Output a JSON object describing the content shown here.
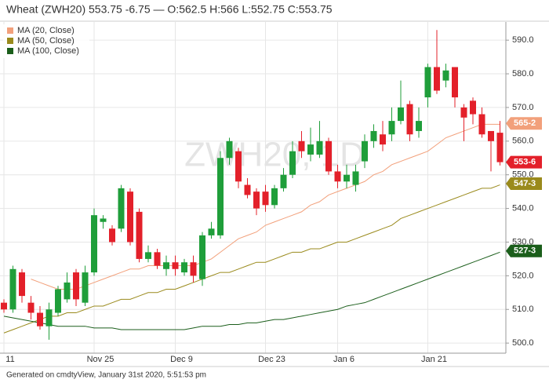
{
  "chart_data": {
    "type": "candlestick",
    "title": "Wheat (ZWH20) 553.75 -6.75 — O:562.5 H:566 L:552.75 C:553.75",
    "watermark": "ZWH20, 1D",
    "footer": "Generated on cmdtyView, January 31st 2020, 5:51:53 pm",
    "categories": [
      "11",
      null,
      null,
      null,
      null,
      null,
      null,
      null,
      null,
      null,
      "Nov 25",
      null,
      null,
      null,
      null,
      null,
      null,
      null,
      null,
      "Dec 9",
      null,
      null,
      null,
      null,
      null,
      null,
      null,
      null,
      null,
      "Dec 23",
      null,
      null,
      null,
      null,
      null,
      null,
      null,
      "Jan 6",
      null,
      null,
      null,
      null,
      null,
      null,
      null,
      null,
      null,
      "Jan 21",
      null,
      null,
      null,
      null,
      null,
      null,
      null,
      null
    ],
    "open": [
      512,
      510,
      521,
      512,
      509,
      505,
      509,
      513,
      521,
      512,
      521,
      536,
      534,
      534,
      545,
      539,
      525,
      527,
      522,
      524,
      521,
      524,
      519,
      532,
      532,
      555,
      557,
      547,
      545,
      545,
      541,
      546,
      550,
      560,
      556,
      556,
      560,
      551,
      548,
      547,
      554,
      560,
      562,
      562,
      566,
      571,
      563,
      573,
      582,
      578,
      582,
      570,
      572,
      568,
      563,
      562.5
    ],
    "high": [
      513,
      523,
      522,
      514,
      511,
      512,
      517,
      521,
      522,
      523,
      540,
      538,
      535,
      547,
      546,
      540,
      529,
      528,
      526,
      526,
      525,
      526,
      533,
      536,
      557,
      561,
      558,
      549,
      546,
      547,
      547,
      552,
      560,
      563,
      564,
      566,
      561,
      553,
      553,
      553,
      562,
      565,
      566,
      570,
      578,
      572,
      570,
      583,
      593,
      583,
      582,
      571,
      573,
      570,
      563,
      566
    ],
    "low": [
      509,
      509,
      512,
      507,
      504,
      501,
      508,
      512,
      511,
      511,
      520,
      534,
      529,
      533,
      529,
      524,
      524,
      522,
      520,
      520,
      520,
      518,
      517,
      531,
      531,
      553,
      546,
      543,
      538,
      539,
      540,
      545,
      549,
      555,
      554,
      555,
      550,
      546,
      546,
      545,
      552,
      558,
      557,
      560,
      565,
      560,
      561,
      570,
      574,
      576,
      570,
      560,
      565,
      561,
      551,
      552.75
    ],
    "close": [
      510,
      522,
      514,
      509,
      505,
      510,
      516,
      518,
      513,
      521,
      538,
      537,
      530,
      546,
      530,
      525,
      527,
      523,
      524,
      522,
      524,
      520,
      532,
      534,
      555,
      560,
      548,
      544,
      540,
      541,
      546,
      550,
      557,
      557,
      559,
      560,
      551,
      548,
      550,
      551,
      560,
      563,
      559,
      566,
      570,
      562,
      566,
      582,
      575,
      581,
      573,
      567,
      568,
      562,
      560,
      553.75
    ],
    "up_color": "#1f9e3a",
    "down_color": "#e3202a",
    "series": [
      {
        "name": "MA (20, Close)",
        "color": "#f2a07b",
        "values": [
          null,
          null,
          null,
          519,
          518,
          517,
          516,
          516,
          516,
          517,
          518,
          519,
          520,
          521,
          522,
          522,
          523,
          523,
          523,
          523,
          523,
          523,
          524,
          525,
          527,
          529,
          531,
          532,
          533,
          535,
          536,
          537,
          538,
          539,
          541,
          542,
          544,
          545,
          546,
          547,
          548,
          550,
          551,
          553,
          554,
          555,
          556,
          557,
          559,
          561,
          562,
          563,
          564,
          565,
          565,
          565
        ]
      },
      {
        "name": "MA (50, Close)",
        "color": "#9a8a1c",
        "values": [
          503,
          504,
          505,
          506,
          507,
          508,
          508,
          509,
          509,
          510,
          511,
          511,
          512,
          513,
          513,
          514,
          515,
          515,
          516,
          516,
          517,
          518,
          519,
          520,
          521,
          521,
          522,
          523,
          524,
          524,
          525,
          526,
          527,
          527,
          528,
          528,
          529,
          530,
          530,
          531,
          532,
          533,
          534,
          535,
          537,
          538,
          539,
          540,
          541,
          542,
          543,
          544,
          545,
          546,
          546,
          547
        ]
      },
      {
        "name": "MA (100, Close)",
        "color": "#1b5e1b",
        "values": [
          508,
          507.5,
          507,
          506.5,
          506,
          505.5,
          505,
          505,
          505,
          505,
          504.5,
          504.5,
          504.5,
          504,
          504,
          504,
          504,
          504,
          504,
          504,
          504,
          504.5,
          505,
          505,
          505,
          505.5,
          505.5,
          506,
          506,
          506.5,
          507,
          507,
          507.5,
          508,
          508.5,
          509,
          509.5,
          510,
          511,
          511.5,
          512,
          513,
          514,
          515,
          516,
          517,
          518,
          519,
          520,
          521,
          522,
          523,
          524,
          525,
          526,
          527
        ]
      }
    ],
    "price_labels": [
      {
        "label": "565-2",
        "value": 565.25,
        "color": "#f2a07b"
      },
      {
        "label": "553-6",
        "value": 553.75,
        "color": "#e3202a"
      },
      {
        "label": "547-3",
        "value": 547.375,
        "color": "#9a8a1c"
      },
      {
        "label": "527-3",
        "value": 527.375,
        "color": "#1b5e1b"
      }
    ],
    "ylim": [
      497,
      595.4
    ],
    "yticks": [
      {
        "value": 500,
        "label": "500.0"
      },
      {
        "value": 510,
        "label": "510.0"
      },
      {
        "value": 520,
        "label": "520.0"
      },
      {
        "value": 530,
        "label": "530.0"
      },
      {
        "value": 540,
        "label": "540.0"
      },
      {
        "value": 550,
        "label": "550.0"
      },
      {
        "value": 560,
        "label": "560.0"
      },
      {
        "value": 570,
        "label": "570.0"
      },
      {
        "value": 580,
        "label": "580.0"
      },
      {
        "value": 590,
        "label": "590.0"
      }
    ],
    "grid": true
  }
}
